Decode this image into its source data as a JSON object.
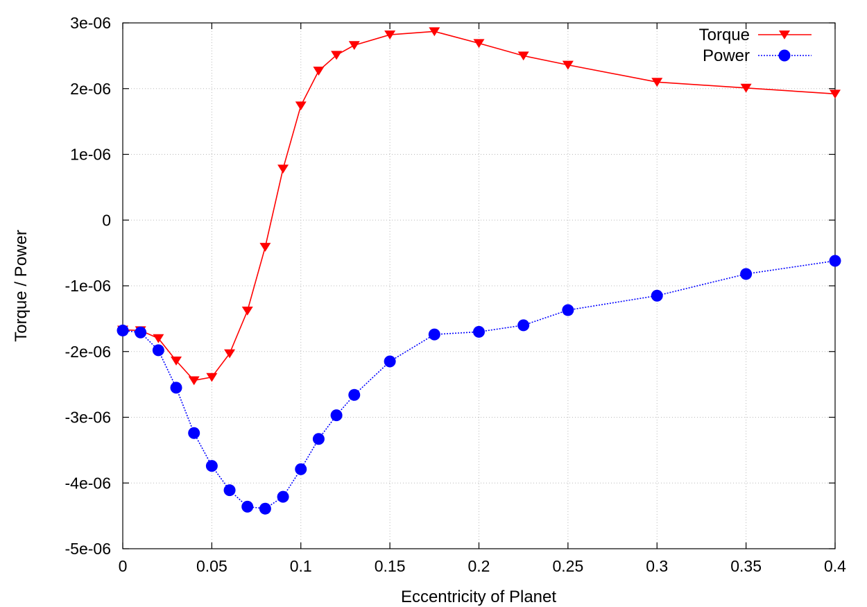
{
  "chart_data": {
    "type": "line",
    "xlabel": "Eccentricity of Planet",
    "ylabel": "Torque / Power",
    "xlim": [
      0,
      0.4
    ],
    "ylim": [
      -5e-06,
      3e-06
    ],
    "grid": true,
    "legend_position": "top-right",
    "x_ticks": [
      0,
      0.05,
      0.1,
      0.15,
      0.2,
      0.25,
      0.3,
      0.35,
      0.4
    ],
    "x_tick_labels": [
      "0",
      "0.05",
      "0.1",
      "0.15",
      "0.2",
      "0.25",
      "0.3",
      "0.35",
      "0.4"
    ],
    "y_ticks": [
      3e-06,
      2e-06,
      1e-06,
      0,
      -1e-06,
      -2e-06,
      -3e-06,
      -4e-06,
      -5e-06
    ],
    "y_tick_labels": [
      "3e-06",
      "2e-06",
      "1e-06",
      "0",
      "-1e-06",
      "-2e-06",
      "-3e-06",
      "-4e-06",
      "-5e-06"
    ],
    "series": [
      {
        "name": "Torque",
        "color": "#ff0000",
        "line_style": "solid",
        "marker": "triangle-down",
        "x": [
          0,
          0.01,
          0.02,
          0.03,
          0.04,
          0.05,
          0.06,
          0.07,
          0.08,
          0.09,
          0.1,
          0.11,
          0.12,
          0.13,
          0.15,
          0.175,
          0.2,
          0.225,
          0.25,
          0.3,
          0.35,
          0.4
        ],
        "y": [
          -1.67e-06,
          -1.68e-06,
          -1.8e-06,
          -2.14e-06,
          -2.44e-06,
          -2.39e-06,
          -2.03e-06,
          -1.38e-06,
          -4.1e-07,
          7.8e-07,
          1.74e-06,
          2.27e-06,
          2.51e-06,
          2.66e-06,
          2.82e-06,
          2.87e-06,
          2.69e-06,
          2.5e-06,
          2.36e-06,
          2.1e-06,
          2.01e-06,
          1.92e-06
        ]
      },
      {
        "name": "Power",
        "color": "#0000ff",
        "line_style": "dotted",
        "marker": "circle",
        "x": [
          0,
          0.01,
          0.02,
          0.03,
          0.04,
          0.05,
          0.06,
          0.07,
          0.08,
          0.09,
          0.1,
          0.11,
          0.12,
          0.13,
          0.15,
          0.175,
          0.2,
          0.225,
          0.25,
          0.3,
          0.35,
          0.4
        ],
        "y": [
          -1.68e-06,
          -1.71e-06,
          -1.98e-06,
          -2.55e-06,
          -3.24e-06,
          -3.74e-06,
          -4.11e-06,
          -4.36e-06,
          -4.39e-06,
          -4.21e-06,
          -3.79e-06,
          -3.33e-06,
          -2.97e-06,
          -2.66e-06,
          -2.15e-06,
          -1.74e-06,
          -1.7e-06,
          -1.6e-06,
          -1.37e-06,
          -1.15e-06,
          -8.2e-07,
          -6.2e-07
        ]
      }
    ]
  }
}
